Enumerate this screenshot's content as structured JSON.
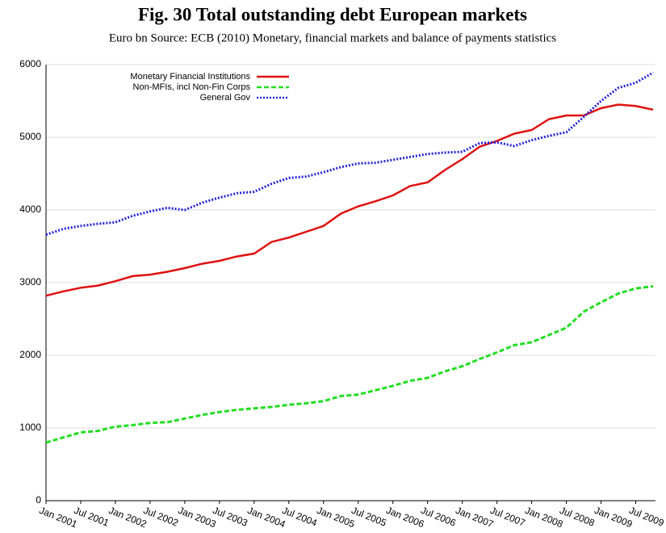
{
  "chart_data": {
    "type": "line",
    "title": "Fig. 30 Total outstanding debt European markets",
    "subtitle": "Euro bn Source: ECB (2010) Monetary, financial markets and balance of payments statistics",
    "categories": [
      "Jan 2001",
      null,
      "Jul 2001",
      null,
      "Jan 2002",
      null,
      "Jul 2002",
      null,
      "Jan 2003",
      null,
      "Jul 2003",
      null,
      "Jan 2004",
      null,
      "Jul 2004",
      null,
      "Jan 2005",
      null,
      "Jul 2005",
      null,
      "Jan 2006",
      null,
      "Jul 2006",
      null,
      "Jan 2007",
      null,
      "Jul 2007",
      null,
      "Jan 2008",
      null,
      "Jul 2008",
      null,
      "Jan 2009",
      null,
      "Jul 2009",
      null
    ],
    "series": [
      {
        "name": "Monetary Financial Institutions",
        "color": "#e01010",
        "dash": "solid",
        "values": [
          2820,
          2880,
          2930,
          2960,
          3020,
          3090,
          3110,
          3150,
          3200,
          3260,
          3300,
          3360,
          3400,
          3560,
          3620,
          3700,
          3780,
          3950,
          4050,
          4120,
          4200,
          4330,
          4380,
          4550,
          4700,
          4870,
          4950,
          5050,
          5100,
          5250,
          5300,
          5300,
          5400,
          5450,
          5430,
          5380
        ]
      },
      {
        "name": "Non-MFIs, incl Non-Fin Corps",
        "color": "#22dd22",
        "dash": "dashed",
        "values": [
          800,
          870,
          940,
          960,
          1020,
          1040,
          1070,
          1080,
          1130,
          1180,
          1220,
          1250,
          1270,
          1290,
          1320,
          1340,
          1370,
          1440,
          1460,
          1520,
          1580,
          1650,
          1690,
          1780,
          1850,
          1950,
          2040,
          2140,
          2180,
          2280,
          2380,
          2600,
          2730,
          2850,
          2920,
          2950
        ]
      },
      {
        "name": "General Gov",
        "color": "#2222dd",
        "dash": "dotted",
        "values": [
          3660,
          3740,
          3780,
          3810,
          3830,
          3920,
          3980,
          4030,
          4000,
          4100,
          4170,
          4230,
          4250,
          4360,
          4440,
          4460,
          4520,
          4590,
          4640,
          4650,
          4690,
          4730,
          4770,
          4790,
          4800,
          4920,
          4930,
          4880,
          4960,
          5020,
          5070,
          5280,
          5500,
          5680,
          5750,
          5890
        ]
      }
    ],
    "ylim": [
      0,
      6000
    ],
    "yticks": [
      0,
      1000,
      2000,
      3000,
      4000,
      5000,
      6000
    ],
    "grid": true,
    "legend": "upper left"
  }
}
